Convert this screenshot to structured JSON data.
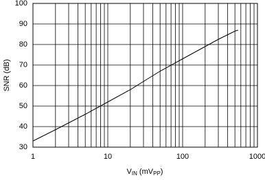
{
  "chart_data": {
    "type": "line",
    "log_x": true,
    "grid": true,
    "y_label": "SNR (dB)",
    "x_label": [
      "V",
      "IN",
      " (mV",
      "PP",
      ")"
    ],
    "x": [
      1,
      2,
      5,
      10,
      20,
      30,
      50,
      100,
      200,
      300,
      500,
      550
    ],
    "series": [
      {
        "name": "SNR",
        "color": "#000000",
        "values": [
          33,
          38.5,
          46,
          52,
          58,
          62,
          67,
          73,
          79,
          82.5,
          86.5,
          87
        ]
      }
    ],
    "xlim": [
      1,
      1000
    ],
    "xticks": [
      1,
      10,
      100,
      1000
    ],
    "xminor_ticks": [
      2,
      3,
      4,
      5,
      6,
      7,
      8,
      9,
      20,
      30,
      40,
      50,
      60,
      70,
      80,
      90,
      200,
      300,
      400,
      500,
      600,
      700,
      800,
      900
    ],
    "ylim": [
      30,
      100
    ],
    "yticks": [
      30,
      40,
      50,
      60,
      70,
      80,
      90,
      100
    ]
  }
}
